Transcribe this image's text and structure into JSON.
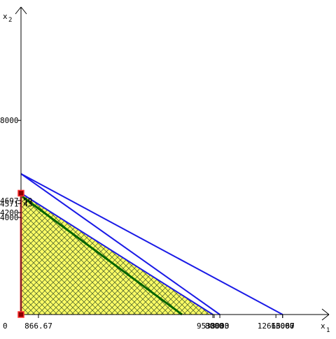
{
  "chart_data": {
    "type": "line",
    "axes": {
      "x_label": "x",
      "x_subscript": "1",
      "y_label": "x",
      "y_subscript": "2",
      "origin_label": "0",
      "x_range": [
        0,
        15000
      ],
      "y_range": [
        0,
        15000
      ]
    },
    "x_ticks": [
      {
        "value": 866.67,
        "label": "866.67"
      },
      {
        "value": 9533.33,
        "label": "9533.33"
      },
      {
        "value": 12666.67,
        "label": "12666.67"
      },
      {
        "value": 13000,
        "label": "13000"
      }
    ],
    "x_ticks_overlapping": [
      {
        "value": 9600,
        "label": "8000"
      },
      {
        "value": 9880,
        "label": "8000"
      },
      {
        "value": 13000,
        "label": "13000"
      }
    ],
    "y_ticks": [
      {
        "value": 4000,
        "label": "4000"
      },
      {
        "value": 4200,
        "label": "4200"
      },
      {
        "value": 4571.43,
        "label": "4571.43"
      },
      {
        "value": 4697.59,
        "label": "4697.59"
      },
      {
        "value": 8000,
        "label": "8000"
      }
    ],
    "feasible_region": {
      "vertices": [
        [
          0,
          0
        ],
        [
          9600,
          0
        ],
        [
          0,
          5000
        ]
      ],
      "fill_color": "#ffff66",
      "hatch_color": "#556b2f"
    },
    "constraints": [
      {
        "x_intercept": 9533.33,
        "y_intercept": 5000
      },
      {
        "x_intercept": 9880,
        "y_intercept": 5800
      },
      {
        "x_intercept": 13000,
        "y_intercept": 5800
      }
    ],
    "objective_line": {
      "x_intercept": 8000,
      "y_intercept": 4900,
      "color": "#006400"
    },
    "optimal_segment": {
      "from": [
        0,
        0
      ],
      "to": [
        0,
        5000
      ],
      "color": "#ff4a4a"
    },
    "optimal_points": [
      [
        0,
        0
      ],
      [
        0,
        5000
      ]
    ],
    "colors": {
      "constraint": "#1a1ae6",
      "objective": "#006400",
      "segment": "#ff4a4a",
      "vertex": "#8b0000",
      "region_fill": "#ffff66"
    }
  }
}
